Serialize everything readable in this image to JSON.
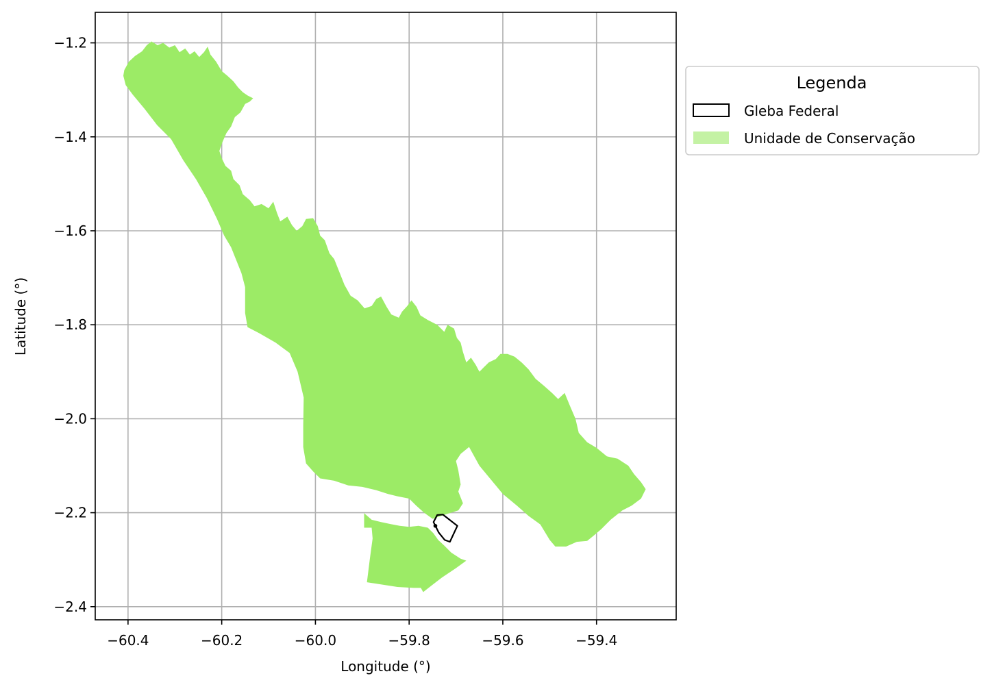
{
  "chart_data": {
    "type": "map",
    "xlabel": "Longitude (°)",
    "ylabel": "Latitude (°)",
    "xlim": [
      -60.47,
      -59.23
    ],
    "ylim": [
      -2.428,
      -1.135
    ],
    "x_ticks": [
      -60.4,
      -60.2,
      -60.0,
      -59.8,
      -59.6,
      -59.4
    ],
    "y_ticks": [
      -1.2,
      -1.4,
      -1.6,
      -1.8,
      -2.0,
      -2.2,
      -2.4
    ],
    "x_tick_labels": [
      "−60.4",
      "−60.2",
      "−60.0",
      "−59.8",
      "−59.6",
      "−59.4"
    ],
    "y_tick_labels": [
      "−1.2",
      "−1.4",
      "−1.6",
      "−1.8",
      "−2.0",
      "−2.2",
      "−2.4"
    ],
    "grid": true,
    "legend": {
      "title": "Legenda",
      "placement": "outside-upper-right",
      "entries": [
        {
          "label": "Gleba Federal",
          "style": "outline",
          "color": "#000000"
        },
        {
          "label": "Unidade de Conservação",
          "style": "fill",
          "color": "#9ceb66"
        }
      ]
    },
    "layers": [
      {
        "name": "Unidade de Conservação",
        "color": "#9ceb66",
        "polygons": [
          [
            [
              -60.408,
              -1.258
            ],
            [
              -60.398,
              -1.24
            ],
            [
              -60.385,
              -1.228
            ],
            [
              -60.37,
              -1.218
            ],
            [
              -60.36,
              -1.205
            ],
            [
              -60.35,
              -1.197
            ],
            [
              -60.337,
              -1.205
            ],
            [
              -60.325,
              -1.2
            ],
            [
              -60.312,
              -1.21
            ],
            [
              -60.3,
              -1.205
            ],
            [
              -60.29,
              -1.22
            ],
            [
              -60.278,
              -1.212
            ],
            [
              -60.268,
              -1.225
            ],
            [
              -60.258,
              -1.218
            ],
            [
              -60.248,
              -1.23
            ],
            [
              -60.238,
              -1.22
            ],
            [
              -60.23,
              -1.208
            ],
            [
              -60.224,
              -1.225
            ],
            [
              -60.212,
              -1.24
            ],
            [
              -60.2,
              -1.26
            ],
            [
              -60.188,
              -1.27
            ],
            [
              -60.175,
              -1.282
            ],
            [
              -60.165,
              -1.295
            ],
            [
              -60.155,
              -1.305
            ],
            [
              -60.145,
              -1.312
            ],
            [
              -60.133,
              -1.318
            ],
            [
              -60.14,
              -1.325
            ],
            [
              -60.15,
              -1.33
            ],
            [
              -60.16,
              -1.348
            ],
            [
              -60.172,
              -1.358
            ],
            [
              -60.18,
              -1.378
            ],
            [
              -60.19,
              -1.392
            ],
            [
              -60.198,
              -1.41
            ],
            [
              -60.205,
              -1.43
            ],
            [
              -60.2,
              -1.445
            ],
            [
              -60.192,
              -1.462
            ],
            [
              -60.18,
              -1.472
            ],
            [
              -60.175,
              -1.49
            ],
            [
              -60.162,
              -1.503
            ],
            [
              -60.155,
              -1.522
            ],
            [
              -60.14,
              -1.535
            ],
            [
              -60.13,
              -1.548
            ],
            [
              -60.115,
              -1.543
            ],
            [
              -60.1,
              -1.552
            ],
            [
              -60.09,
              -1.538
            ],
            [
              -60.082,
              -1.562
            ],
            [
              -60.075,
              -1.58
            ],
            [
              -60.06,
              -1.57
            ],
            [
              -60.05,
              -1.588
            ],
            [
              -60.04,
              -1.6
            ],
            [
              -60.028,
              -1.59
            ],
            [
              -60.02,
              -1.575
            ],
            [
              -60.005,
              -1.573
            ],
            [
              -59.995,
              -1.59
            ],
            [
              -59.99,
              -1.61
            ],
            [
              -59.98,
              -1.62
            ],
            [
              -59.97,
              -1.648
            ],
            [
              -59.96,
              -1.66
            ],
            [
              -59.948,
              -1.69
            ],
            [
              -59.938,
              -1.715
            ],
            [
              -59.925,
              -1.738
            ],
            [
              -59.91,
              -1.748
            ],
            [
              -59.895,
              -1.765
            ],
            [
              -59.88,
              -1.76
            ],
            [
              -59.87,
              -1.745
            ],
            [
              -59.86,
              -1.74
            ],
            [
              -59.848,
              -1.762
            ],
            [
              -59.838,
              -1.778
            ],
            [
              -59.822,
              -1.785
            ],
            [
              -59.815,
              -1.772
            ],
            [
              -59.804,
              -1.76
            ],
            [
              -59.795,
              -1.748
            ],
            [
              -59.784,
              -1.762
            ],
            [
              -59.776,
              -1.78
            ],
            [
              -59.76,
              -1.79
            ],
            [
              -59.74,
              -1.8
            ],
            [
              -59.725,
              -1.815
            ],
            [
              -59.718,
              -1.8
            ],
            [
              -59.704,
              -1.808
            ],
            [
              -59.698,
              -1.828
            ],
            [
              -59.69,
              -1.838
            ],
            [
              -59.685,
              -1.858
            ],
            [
              -59.678,
              -1.88
            ],
            [
              -59.668,
              -1.87
            ],
            [
              -59.658,
              -1.885
            ],
            [
              -59.65,
              -1.9
            ],
            [
              -59.64,
              -1.89
            ],
            [
              -59.63,
              -1.88
            ],
            [
              -59.615,
              -1.873
            ],
            [
              -59.605,
              -1.862
            ],
            [
              -59.59,
              -1.862
            ],
            [
              -59.575,
              -1.868
            ],
            [
              -59.56,
              -1.88
            ],
            [
              -59.545,
              -1.895
            ],
            [
              -59.53,
              -1.915
            ],
            [
              -59.512,
              -1.93
            ],
            [
              -59.495,
              -1.945
            ],
            [
              -59.482,
              -1.958
            ],
            [
              -59.468,
              -1.945
            ],
            [
              -59.457,
              -1.972
            ],
            [
              -59.445,
              -2.0
            ],
            [
              -59.438,
              -2.03
            ],
            [
              -59.42,
              -2.05
            ],
            [
              -59.4,
              -2.062
            ],
            [
              -59.378,
              -2.08
            ],
            [
              -59.355,
              -2.085
            ],
            [
              -59.332,
              -2.1
            ],
            [
              -59.32,
              -2.118
            ],
            [
              -59.305,
              -2.135
            ],
            [
              -59.295,
              -2.15
            ],
            [
              -59.305,
              -2.17
            ],
            [
              -59.325,
              -2.185
            ],
            [
              -59.345,
              -2.195
            ],
            [
              -59.37,
              -2.215
            ],
            [
              -59.39,
              -2.235
            ],
            [
              -59.405,
              -2.248
            ],
            [
              -59.42,
              -2.26
            ],
            [
              -59.442,
              -2.262
            ],
            [
              -59.465,
              -2.272
            ],
            [
              -59.488,
              -2.272
            ],
            [
              -59.5,
              -2.258
            ],
            [
              -59.52,
              -2.225
            ],
            [
              -59.545,
              -2.207
            ],
            [
              -59.57,
              -2.185
            ],
            [
              -59.6,
              -2.16
            ],
            [
              -59.625,
              -2.13
            ],
            [
              -59.65,
              -2.1
            ],
            [
              -59.672,
              -2.06
            ],
            [
              -59.69,
              -2.075
            ],
            [
              -59.7,
              -2.09
            ],
            [
              -59.695,
              -2.11
            ],
            [
              -59.69,
              -2.14
            ],
            [
              -59.695,
              -2.155
            ],
            [
              -59.685,
              -2.18
            ],
            [
              -59.695,
              -2.195
            ],
            [
              -59.72,
              -2.203
            ],
            [
              -59.75,
              -2.213
            ],
            [
              -59.768,
              -2.2
            ],
            [
              -59.785,
              -2.185
            ],
            [
              -59.8,
              -2.17
            ],
            [
              -59.825,
              -2.165
            ],
            [
              -59.845,
              -2.16
            ],
            [
              -59.87,
              -2.152
            ],
            [
              -59.9,
              -2.145
            ],
            [
              -59.93,
              -2.142
            ],
            [
              -59.96,
              -2.132
            ],
            [
              -59.99,
              -2.127
            ],
            [
              -60.005,
              -2.112
            ],
            [
              -60.02,
              -2.095
            ],
            [
              -60.026,
              -2.06
            ],
            [
              -60.026,
              -2.015
            ],
            [
              -60.025,
              -1.955
            ],
            [
              -60.038,
              -1.9
            ],
            [
              -60.055,
              -1.86
            ],
            [
              -60.085,
              -1.838
            ],
            [
              -60.12,
              -1.818
            ],
            [
              -60.145,
              -1.805
            ],
            [
              -60.15,
              -1.775
            ],
            [
              -60.15,
              -1.72
            ],
            [
              -60.158,
              -1.69
            ],
            [
              -60.17,
              -1.66
            ],
            [
              -60.18,
              -1.635
            ],
            [
              -60.195,
              -1.61
            ],
            [
              -60.21,
              -1.575
            ],
            [
              -60.232,
              -1.53
            ],
            [
              -60.255,
              -1.49
            ],
            [
              -60.282,
              -1.45
            ],
            [
              -60.308,
              -1.405
            ],
            [
              -60.338,
              -1.375
            ],
            [
              -60.365,
              -1.34
            ],
            [
              -60.39,
              -1.31
            ],
            [
              -60.405,
              -1.29
            ],
            [
              -60.41,
              -1.27
            ]
          ],
          [
            [
              -59.896,
              -2.201
            ],
            [
              -59.88,
              -2.215
            ],
            [
              -59.86,
              -2.22
            ],
            [
              -59.84,
              -2.224
            ],
            [
              -59.82,
              -2.228
            ],
            [
              -59.8,
              -2.23
            ],
            [
              -59.78,
              -2.228
            ],
            [
              -59.76,
              -2.232
            ],
            [
              -59.748,
              -2.244
            ],
            [
              -59.738,
              -2.258
            ],
            [
              -59.725,
              -2.27
            ],
            [
              -59.71,
              -2.285
            ],
            [
              -59.69,
              -2.298
            ],
            [
              -59.678,
              -2.302
            ],
            [
              -59.7,
              -2.318
            ],
            [
              -59.73,
              -2.338
            ],
            [
              -59.752,
              -2.355
            ],
            [
              -59.77,
              -2.369
            ],
            [
              -59.775,
              -2.36
            ],
            [
              -59.79,
              -2.36
            ],
            [
              -59.825,
              -2.358
            ],
            [
              -59.858,
              -2.353
            ],
            [
              -59.89,
              -2.348
            ],
            [
              -59.884,
              -2.3
            ],
            [
              -59.878,
              -2.255
            ],
            [
              -59.88,
              -2.232
            ],
            [
              -59.896,
              -2.232
            ]
          ]
        ]
      },
      {
        "name": "Gleba Federal",
        "color": "#000000",
        "polygons": [
          [
            [
              -59.74,
              -2.205
            ],
            [
              -59.728,
              -2.204
            ],
            [
              -59.697,
              -2.228
            ],
            [
              -59.713,
              -2.262
            ],
            [
              -59.724,
              -2.258
            ],
            [
              -59.737,
              -2.242
            ],
            [
              -59.742,
              -2.232
            ],
            [
              -59.748,
              -2.22
            ]
          ]
        ],
        "points": [
          [
            -59.744,
            -2.228
          ]
        ]
      }
    ]
  }
}
